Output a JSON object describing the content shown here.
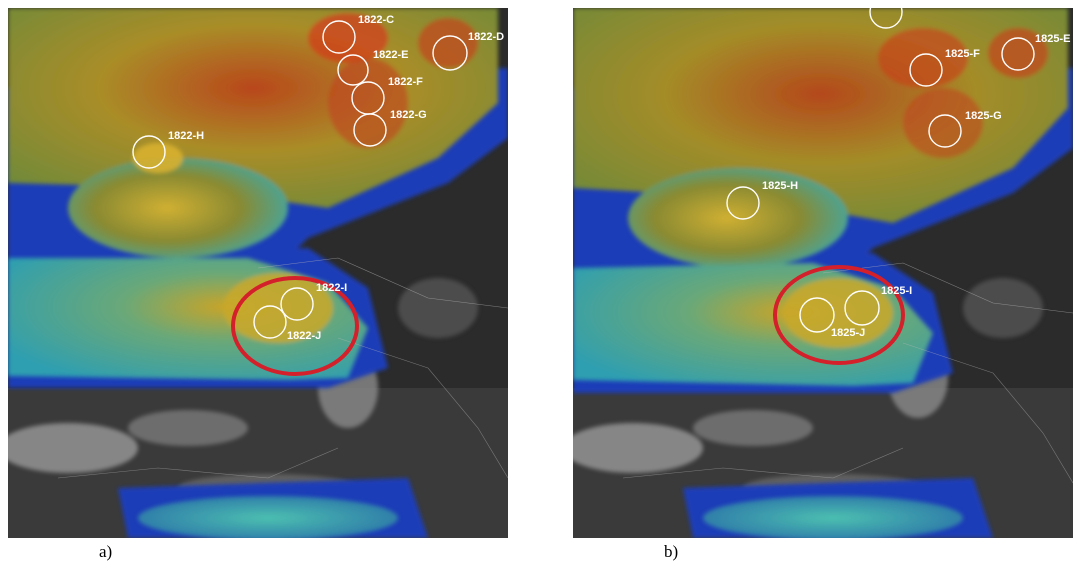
{
  "panels": [
    {
      "caption": "a)",
      "markers": [
        {
          "label": "1822-C"
        },
        {
          "label": "1822-E"
        },
        {
          "label": "1822-D"
        },
        {
          "label": "1822-F"
        },
        {
          "label": "1822-G"
        },
        {
          "label": "1822-H"
        },
        {
          "label": "1822-I"
        },
        {
          "label": "1822-J"
        }
      ]
    },
    {
      "caption": "b)",
      "markers": [
        {
          "label": "1825-E"
        },
        {
          "label": "1825-F"
        },
        {
          "label": "1825-G"
        },
        {
          "label": "1825-H"
        },
        {
          "label": "1825-I"
        },
        {
          "label": "1825-J"
        }
      ]
    }
  ],
  "colors": {
    "marker_circle": "#ffffff",
    "highlight_ellipse": "#d4202a",
    "cold_core_red": "#c8321a",
    "cloud_yellow": "#b8a632",
    "cloud_cyan": "#4fb8b0",
    "edge_blue": "#1f3db8",
    "background_dark": "#2b2b2b"
  }
}
